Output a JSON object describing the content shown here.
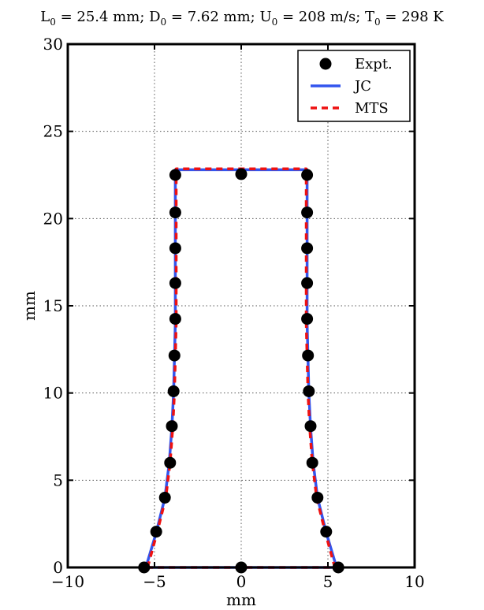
{
  "chart_data": {
    "type": "line",
    "title": {
      "parts": [
        {
          "base": "L",
          "sub": "0",
          "rest": " = 25.4 mm; "
        },
        {
          "base": "D",
          "sub": "0",
          "rest": " = 7.62 mm; "
        },
        {
          "base": "U",
          "sub": "0",
          "rest": " = 208 m/s; "
        },
        {
          "base": "T",
          "sub": "0",
          "rest": " = 298 K"
        }
      ]
    },
    "xlabel": "mm",
    "ylabel": "mm",
    "xlim": [
      -10,
      10
    ],
    "ylim": [
      0,
      30
    ],
    "xticks": [
      -10,
      -5,
      0,
      5,
      10
    ],
    "yticks": [
      0,
      5,
      10,
      15,
      20,
      25,
      30
    ],
    "xtick_labels": [
      "−10",
      "−5",
      "0",
      "5",
      "10"
    ],
    "ytick_labels": [
      "0",
      "5",
      "10",
      "15",
      "20",
      "25",
      "30"
    ],
    "grid": "dotted",
    "legend_position": "top-right",
    "series": [
      {
        "name": "Expt.",
        "style": "markers",
        "color": "#000000",
        "points": [
          [
            -5.6,
            0.0
          ],
          [
            -4.9,
            2.05
          ],
          [
            -4.4,
            4.0
          ],
          [
            -4.1,
            6.0
          ],
          [
            -4.0,
            8.1
          ],
          [
            -3.9,
            10.1
          ],
          [
            -3.85,
            12.15
          ],
          [
            -3.8,
            14.25
          ],
          [
            -3.8,
            16.3
          ],
          [
            -3.8,
            18.3
          ],
          [
            -3.8,
            20.35
          ],
          [
            -3.8,
            22.5
          ],
          [
            0.0,
            22.55
          ],
          [
            3.8,
            22.5
          ],
          [
            3.8,
            20.35
          ],
          [
            3.8,
            18.3
          ],
          [
            3.8,
            16.3
          ],
          [
            3.8,
            14.25
          ],
          [
            3.85,
            12.15
          ],
          [
            3.9,
            10.1
          ],
          [
            4.0,
            8.1
          ],
          [
            4.1,
            6.0
          ],
          [
            4.4,
            4.0
          ],
          [
            4.9,
            2.05
          ],
          [
            5.6,
            0.0
          ],
          [
            0.0,
            0.0
          ]
        ]
      },
      {
        "name": "JC",
        "style": "solid",
        "color": "#3355ee",
        "points": [
          [
            -5.5,
            0.0
          ],
          [
            -4.9,
            2.0
          ],
          [
            -4.4,
            4.0
          ],
          [
            -4.15,
            6.0
          ],
          [
            -4.0,
            8.0
          ],
          [
            -3.9,
            10.0
          ],
          [
            -3.85,
            12.0
          ],
          [
            -3.8,
            14.0
          ],
          [
            -3.8,
            16.0
          ],
          [
            -3.8,
            18.0
          ],
          [
            -3.8,
            20.0
          ],
          [
            -3.8,
            22.8
          ],
          [
            0.0,
            22.8
          ],
          [
            3.8,
            22.8
          ],
          [
            3.8,
            20.0
          ],
          [
            3.8,
            18.0
          ],
          [
            3.8,
            16.0
          ],
          [
            3.8,
            14.0
          ],
          [
            3.85,
            12.0
          ],
          [
            3.9,
            10.0
          ],
          [
            4.0,
            8.0
          ],
          [
            4.15,
            6.0
          ],
          [
            4.4,
            4.0
          ],
          [
            4.9,
            2.0
          ],
          [
            5.5,
            0.0
          ],
          [
            -5.5,
            0.0
          ]
        ]
      },
      {
        "name": "MTS",
        "style": "dashed",
        "color": "#ee1111",
        "points": [
          [
            -5.4,
            0.0
          ],
          [
            -4.85,
            2.0
          ],
          [
            -4.35,
            4.0
          ],
          [
            -4.1,
            6.0
          ],
          [
            -3.95,
            8.0
          ],
          [
            -3.85,
            10.0
          ],
          [
            -3.8,
            12.0
          ],
          [
            -3.75,
            14.0
          ],
          [
            -3.75,
            16.0
          ],
          [
            -3.75,
            18.0
          ],
          [
            -3.75,
            20.0
          ],
          [
            -3.75,
            22.85
          ],
          [
            0.0,
            22.85
          ],
          [
            3.75,
            22.85
          ],
          [
            3.75,
            20.0
          ],
          [
            3.75,
            18.0
          ],
          [
            3.75,
            16.0
          ],
          [
            3.75,
            14.0
          ],
          [
            3.8,
            12.0
          ],
          [
            3.85,
            10.0
          ],
          [
            3.95,
            8.0
          ],
          [
            4.1,
            6.0
          ],
          [
            4.35,
            4.0
          ],
          [
            4.85,
            2.0
          ],
          [
            5.4,
            0.0
          ],
          [
            -5.4,
            0.0
          ]
        ]
      }
    ]
  }
}
